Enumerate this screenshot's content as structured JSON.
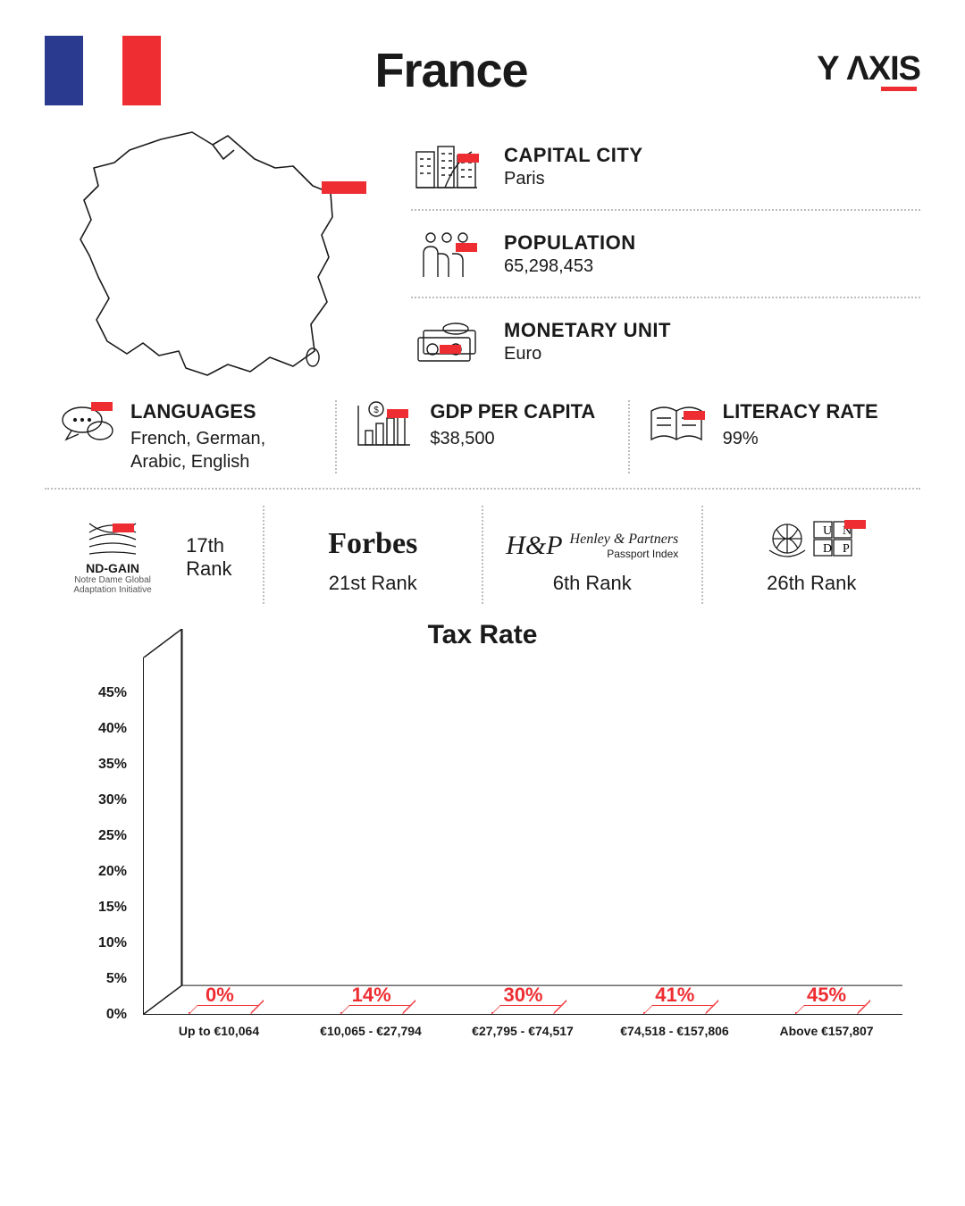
{
  "title": "France",
  "brand": {
    "name": "Y ΛXIS",
    "underline_color": "#ee2d32"
  },
  "flag": {
    "colors": [
      "#2a3b8f",
      "#ffffff",
      "#ee2d32"
    ]
  },
  "map": {
    "marker_color": "#ee2d32"
  },
  "facts": {
    "capital": {
      "label": "CAPITAL CITY",
      "value": "Paris"
    },
    "population": {
      "label": "POPULATION",
      "value": "65,298,453"
    },
    "monetary": {
      "label": "MONETARY UNIT",
      "value": "Euro"
    }
  },
  "row3": {
    "languages": {
      "label": "LANGUAGES",
      "value": "French, German, Arabic, English"
    },
    "gdp": {
      "label": "GDP PER CAPITA",
      "value": "$38,500"
    },
    "literacy": {
      "label": "LITERACY RATE",
      "value": "99%"
    }
  },
  "ranks": {
    "ndgain": {
      "source": "ND-GAIN",
      "source_sub": "Notre Dame Global\nAdaptation Initiative",
      "value": "17th Rank"
    },
    "forbes": {
      "source": "Forbes",
      "value": "21st Rank"
    },
    "henley": {
      "source": "H&P",
      "source_sub": "Henley & Partners",
      "source_sub2": "Passport Index",
      "value": "6th Rank"
    },
    "undp": {
      "source": "UNDP",
      "value": "26th Rank"
    }
  },
  "chart": {
    "type": "bar",
    "title": "Tax Rate",
    "bar_border_color": "#ee2d32",
    "bar_fill_color": "#ffffff",
    "label_color": "#ee2d32",
    "axis_color": "#1a1a1a",
    "value_fontsize": 22,
    "ylim": [
      0,
      50
    ],
    "yticks": [
      0,
      5,
      10,
      15,
      20,
      25,
      30,
      35,
      40,
      45
    ],
    "categories": [
      "Up to €10,064",
      "€10,065 - €27,794",
      "€27,795 - €74,517",
      "€74,518 - €157,806",
      "Above €157,807"
    ],
    "values": [
      0,
      14,
      30,
      41,
      45
    ],
    "value_labels": [
      "0%",
      "14%",
      "30%",
      "41%",
      "45%"
    ]
  },
  "colors": {
    "accent": "#ee2d32",
    "text": "#1a1a1a",
    "dotted": "#bdbdbd",
    "background": "#ffffff"
  }
}
